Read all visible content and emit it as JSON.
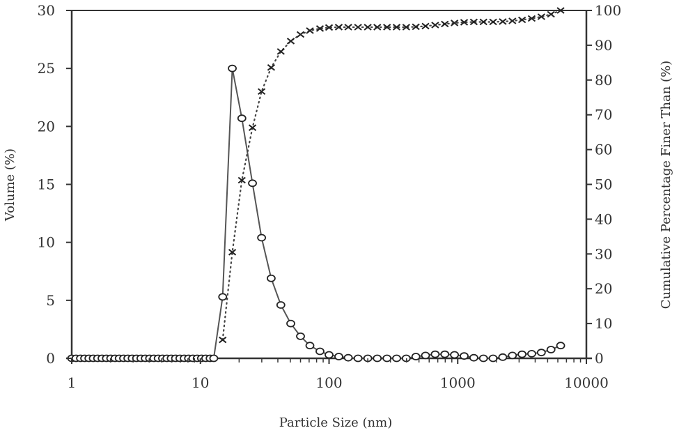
{
  "chart_data": {
    "type": "line",
    "title": "",
    "xlabel": "Particle Size (nm)",
    "ylabel": "Volume (%)",
    "y2label": "Cumulative Percentage Finer Than (%)",
    "xscale": "log",
    "xlim": [
      1,
      10000
    ],
    "ylim": [
      0,
      30
    ],
    "y2lim": [
      0,
      100
    ],
    "grid": false,
    "legend": "none",
    "x_ticks": [
      "1",
      "10",
      "100",
      "1000",
      "10000"
    ],
    "y_ticks": [
      "0",
      "5",
      "10",
      "15",
      "20",
      "25",
      "30"
    ],
    "y2_ticks": [
      "0",
      "10",
      "20",
      "30",
      "40",
      "50",
      "60",
      "70",
      "80",
      "90",
      "100"
    ],
    "series": [
      {
        "name": "Volume (%)",
        "axis": "left",
        "style": "solid line, open circle markers",
        "x": [
          1.0,
          1.08,
          1.17,
          1.26,
          1.36,
          1.47,
          1.59,
          1.72,
          1.86,
          2.01,
          2.17,
          2.34,
          2.53,
          2.73,
          2.95,
          3.19,
          3.45,
          3.73,
          4.03,
          4.35,
          4.7,
          5.08,
          5.49,
          5.93,
          6.41,
          6.93,
          7.49,
          8.09,
          8.74,
          9.45,
          10.2,
          11.0,
          11.9,
          12.7,
          14.9,
          17.7,
          21.0,
          25.4,
          29.9,
          35.5,
          42.2,
          50.4,
          60.0,
          71.0,
          85.0,
          100,
          119,
          141,
          168,
          200,
          237,
          282,
          335,
          398,
          473,
          562,
          668,
          794,
          944,
          1122,
          1334,
          1585,
          1884,
          2239,
          2661,
          3162,
          3758,
          4467,
          5309,
          6310
        ],
        "values": [
          0,
          0,
          0,
          0,
          0,
          0,
          0,
          0,
          0,
          0,
          0,
          0,
          0,
          0,
          0,
          0,
          0,
          0,
          0,
          0,
          0,
          0,
          0,
          0,
          0,
          0,
          0,
          0,
          0,
          0,
          0,
          0,
          0,
          0,
          5.3,
          25.0,
          20.7,
          15.1,
          10.4,
          6.9,
          4.6,
          3.0,
          1.9,
          1.1,
          0.6,
          0.3,
          0.15,
          0.05,
          0,
          0,
          0,
          0,
          0,
          0,
          0.15,
          0.25,
          0.35,
          0.35,
          0.3,
          0.2,
          0.05,
          0,
          0,
          0.1,
          0.25,
          0.35,
          0.4,
          0.5,
          0.75,
          1.1
        ]
      },
      {
        "name": "Cumulative Percentage Finer Than (%)",
        "axis": "right",
        "style": "dotted line, x markers",
        "x": [
          14.9,
          17.7,
          21.0,
          25.4,
          29.9,
          35.5,
          42.2,
          50.4,
          60.0,
          71.0,
          85.0,
          100,
          119,
          141,
          168,
          200,
          237,
          282,
          335,
          398,
          473,
          562,
          668,
          794,
          944,
          1122,
          1334,
          1585,
          1884,
          2239,
          2661,
          3162,
          3758,
          4467,
          5309,
          6310
        ],
        "values": [
          5.3,
          30.5,
          51.2,
          66.3,
          76.7,
          83.6,
          88.2,
          91.2,
          93.1,
          94.2,
          94.8,
          95.1,
          95.2,
          95.2,
          95.2,
          95.2,
          95.2,
          95.2,
          95.2,
          95.2,
          95.3,
          95.5,
          95.8,
          96.1,
          96.4,
          96.6,
          96.7,
          96.7,
          96.7,
          96.8,
          97.0,
          97.3,
          97.7,
          98.2,
          98.9,
          100
        ]
      }
    ]
  }
}
